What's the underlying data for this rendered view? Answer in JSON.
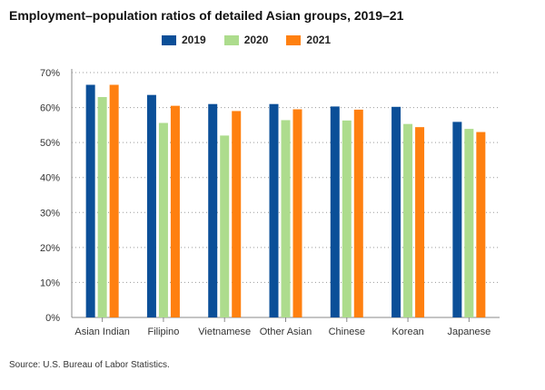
{
  "chart_data": {
    "type": "bar",
    "title": "Employment–population ratios of detailed Asian groups, 2019–21",
    "categories": [
      "Asian Indian",
      "Filipino",
      "Vietnamese",
      "Other Asian",
      "Chinese",
      "Korean",
      "Japanese"
    ],
    "series": [
      {
        "name": "2019",
        "color": "#0b4f98",
        "values": [
          66.5,
          63.6,
          61.0,
          61.0,
          60.3,
          60.2,
          55.9
        ]
      },
      {
        "name": "2020",
        "color": "#addc8d",
        "values": [
          63.0,
          55.6,
          52.0,
          56.4,
          56.3,
          55.3,
          53.9
        ]
      },
      {
        "name": "2021",
        "color": "#ff8010",
        "values": [
          66.5,
          60.5,
          59.0,
          59.5,
          59.4,
          54.4,
          53.0
        ]
      }
    ],
    "yticks": [
      "0%",
      "10%",
      "20%",
      "30%",
      "40%",
      "50%",
      "60%",
      "70%"
    ],
    "ylim": [
      0,
      70
    ],
    "grid": true,
    "legend_position": "top"
  },
  "source": "Source: U.S. Bureau of Labor Statistics."
}
